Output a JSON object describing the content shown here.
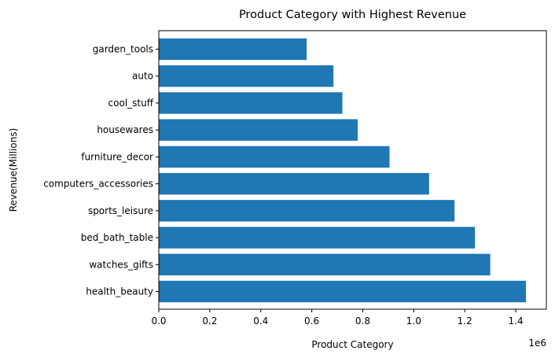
{
  "chart_data": {
    "type": "bar",
    "orientation": "horizontal",
    "title": "Product Category with Highest Revenue",
    "xlabel": "Product Category",
    "ylabel": "Revenue(Millions)",
    "x_offset_label": "1e6",
    "categories": [
      "health_beauty",
      "watches_gifts",
      "bed_bath_table",
      "sports_leisure",
      "computers_accessories",
      "furniture_decor",
      "housewares",
      "cool_stuff",
      "auto",
      "garden_tools"
    ],
    "values": [
      1440000,
      1300000,
      1240000,
      1160000,
      1060000,
      905000,
      780000,
      720000,
      685000,
      580000
    ],
    "xticks": [
      0,
      0.2,
      0.4,
      0.6,
      0.8,
      1.0,
      1.2,
      1.4
    ],
    "xtick_labels": [
      "0.0",
      "0.2",
      "0.4",
      "0.6",
      "0.8",
      "1.0",
      "1.2",
      "1.4"
    ],
    "xlim": [
      0,
      1.52
    ],
    "tick_scale": 1000000,
    "grid": false,
    "colors": {
      "bar": "#1f77b4",
      "axis": "#000000"
    }
  }
}
